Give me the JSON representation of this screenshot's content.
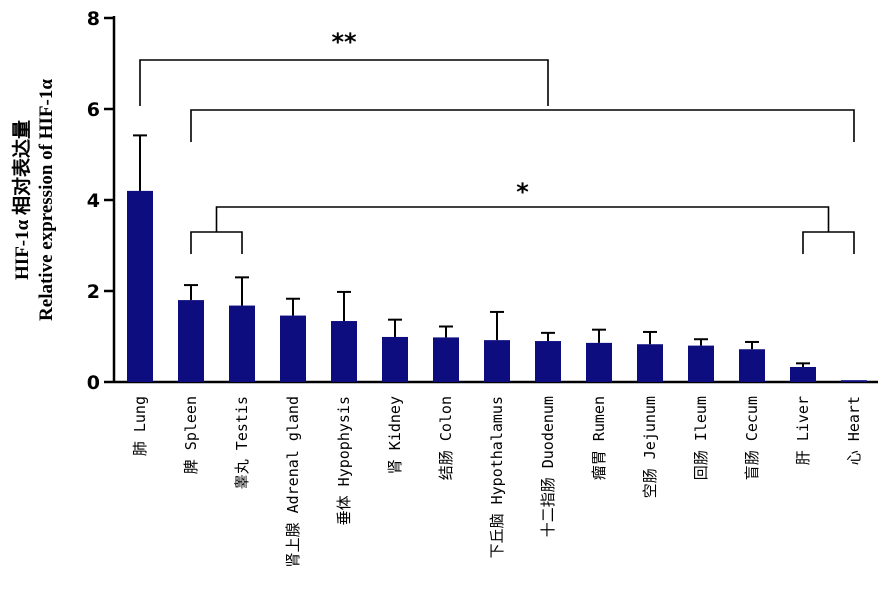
{
  "chart_data": {
    "type": "bar",
    "ylabel_line1": "HIF-1α 相对表达量",
    "ylabel_line2": "Relative expression of HIF-1α",
    "ylim": [
      0,
      8
    ],
    "yticks": [
      "0",
      "2",
      "4",
      "6",
      "8"
    ],
    "categories": [
      "肺 Lung",
      "脾 Spleen",
      "睾丸 Testis",
      "肾上腺 Adrenal gland",
      "垂体 Hypophysis",
      "肾 Kidney",
      "结肠 Colon",
      "下丘脑 Hypothalamus",
      "十二指肠 Duodenum",
      "瘤胃 Rumen",
      "空肠 Jejunum",
      "回肠 Ileum",
      "盲肠 Cecum",
      "肝 Liver",
      "心 Heart"
    ],
    "values": [
      4.2,
      1.8,
      1.68,
      1.46,
      1.34,
      0.99,
      0.98,
      0.92,
      0.9,
      0.86,
      0.83,
      0.8,
      0.72,
      0.33,
      0.04
    ],
    "errors": [
      1.22,
      0.33,
      0.62,
      0.37,
      0.64,
      0.38,
      0.24,
      0.62,
      0.18,
      0.29,
      0.27,
      0.14,
      0.16,
      0.08,
      0.0
    ],
    "bar_color": "#0d0d80",
    "significance": [
      {
        "label": "**",
        "left": [
          0
        ],
        "right": [
          8
        ]
      },
      {
        "label": "",
        "left": [
          1
        ],
        "right": [
          14
        ]
      },
      {
        "label": "*",
        "left": [
          1,
          2
        ],
        "right": [
          13,
          14
        ]
      }
    ]
  }
}
